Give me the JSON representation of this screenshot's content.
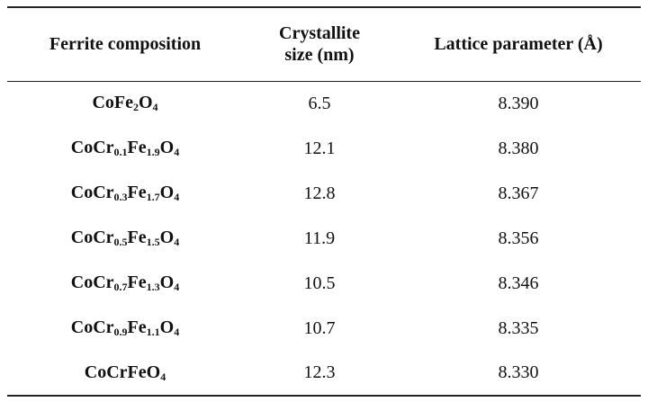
{
  "table": {
    "header": [
      "Ferrite composition",
      "Crystallite size (nm)",
      "Lattice parameter (Å)"
    ],
    "rows": [
      {
        "composition": [
          {
            "text": "CoFe"
          },
          {
            "sub": "2"
          },
          {
            "text": "O"
          },
          {
            "sub": "4"
          }
        ],
        "crystallite_size": "6.5",
        "lattice_parameter": "8.390"
      },
      {
        "composition": [
          {
            "text": "CoCr"
          },
          {
            "sub": "0.1"
          },
          {
            "text": "Fe"
          },
          {
            "sub": "1.9"
          },
          {
            "text": "O"
          },
          {
            "sub": "4"
          }
        ],
        "crystallite_size": "12.1",
        "lattice_parameter": "8.380"
      },
      {
        "composition": [
          {
            "text": "CoCr"
          },
          {
            "sub": "0.3"
          },
          {
            "text": "Fe"
          },
          {
            "sub": "1.7"
          },
          {
            "text": "O"
          },
          {
            "sub": "4"
          }
        ],
        "crystallite_size": "12.8",
        "lattice_parameter": "8.367"
      },
      {
        "composition": [
          {
            "text": "CoCr"
          },
          {
            "sub": "0.5"
          },
          {
            "text": "Fe"
          },
          {
            "sub": "1.5"
          },
          {
            "text": "O"
          },
          {
            "sub": "4"
          }
        ],
        "crystallite_size": "11.9",
        "lattice_parameter": "8.356"
      },
      {
        "composition": [
          {
            "text": "CoCr"
          },
          {
            "sub": "0.7"
          },
          {
            "text": "Fe"
          },
          {
            "sub": "1.3"
          },
          {
            "text": "O"
          },
          {
            "sub": "4"
          }
        ],
        "crystallite_size": "10.5",
        "lattice_parameter": "8.346"
      },
      {
        "composition": [
          {
            "text": "CoCr"
          },
          {
            "sub": "0.9"
          },
          {
            "text": "Fe"
          },
          {
            "sub": "1.1"
          },
          {
            "text": "O"
          },
          {
            "sub": "4"
          }
        ],
        "crystallite_size": "10.7",
        "lattice_parameter": "8.335"
      },
      {
        "composition": [
          {
            "text": "CoCrFeO"
          },
          {
            "sub": "4"
          }
        ],
        "crystallite_size": "12.3",
        "lattice_parameter": "8.330"
      }
    ]
  }
}
